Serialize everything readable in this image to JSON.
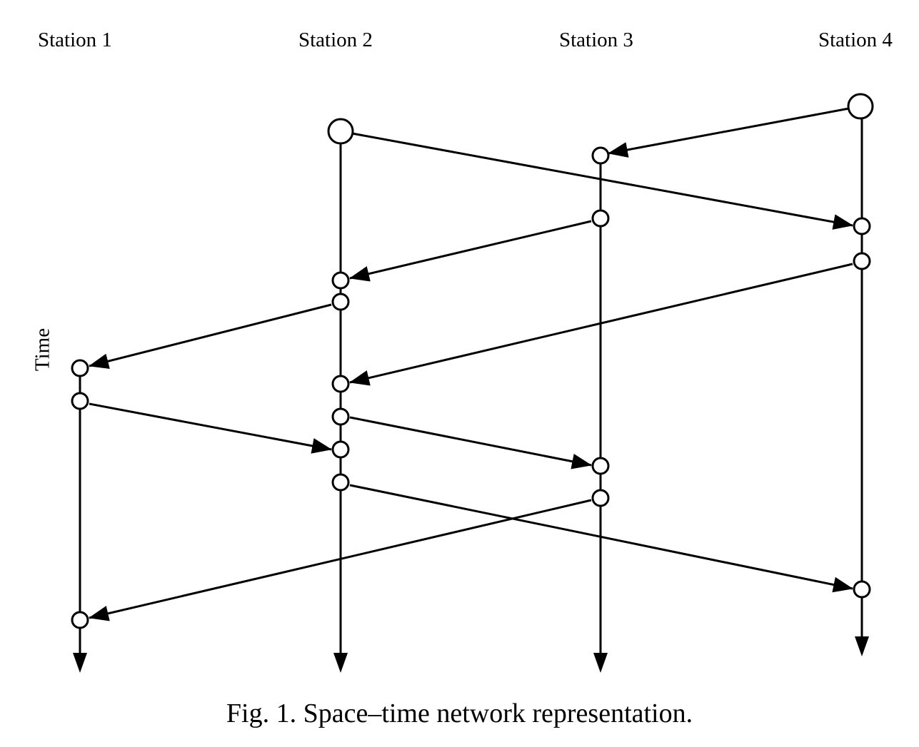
{
  "figure": {
    "stations": [
      {
        "label": "Station 1"
      },
      {
        "label": "Station 2"
      },
      {
        "label": "Station 3"
      },
      {
        "label": "Station 4"
      }
    ],
    "axis_label": "Time",
    "caption": "Fig. 1. Space–time network representation.",
    "line_color": "#000000",
    "node_fill": "#ffffff"
  }
}
